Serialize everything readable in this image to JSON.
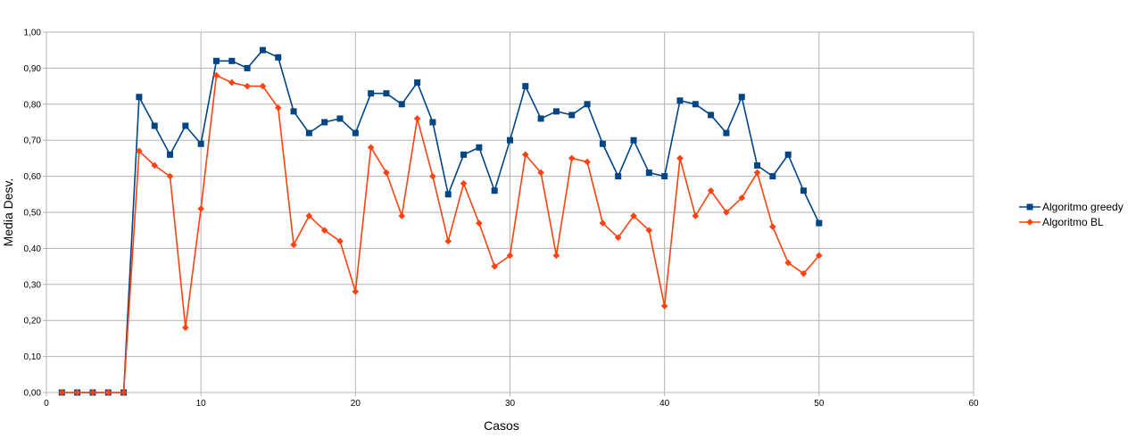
{
  "chart_data": {
    "type": "line",
    "title": "",
    "xlabel": "Casos",
    "ylabel": "Media Desv.",
    "xlim": [
      0,
      60
    ],
    "ylim": [
      0,
      1
    ],
    "x_ticks": [
      0,
      10,
      20,
      30,
      40,
      50,
      60
    ],
    "y_ticks": [
      "0,00",
      "0,10",
      "0,20",
      "0,30",
      "0,40",
      "0,50",
      "0,60",
      "0,70",
      "0,80",
      "0,90",
      "1,00"
    ],
    "grid": true,
    "legend_position": "right",
    "x": [
      1,
      2,
      3,
      4,
      5,
      6,
      7,
      8,
      9,
      10,
      11,
      12,
      13,
      14,
      15,
      16,
      17,
      18,
      19,
      20,
      21,
      22,
      23,
      24,
      25,
      26,
      27,
      28,
      29,
      30,
      31,
      32,
      33,
      34,
      35,
      36,
      37,
      38,
      39,
      40,
      41,
      42,
      43,
      44,
      45,
      46,
      47,
      48,
      49,
      50
    ],
    "series": [
      {
        "name": "Algoritmo greedy",
        "color": "#004586",
        "marker": "square",
        "values": [
          0.0,
          0.0,
          0.0,
          0.0,
          0.0,
          0.82,
          0.74,
          0.66,
          0.74,
          0.69,
          0.92,
          0.92,
          0.9,
          0.95,
          0.93,
          0.78,
          0.72,
          0.75,
          0.76,
          0.72,
          0.83,
          0.83,
          0.8,
          0.86,
          0.75,
          0.55,
          0.66,
          0.68,
          0.56,
          0.7,
          0.85,
          0.76,
          0.78,
          0.77,
          0.8,
          0.69,
          0.6,
          0.7,
          0.61,
          0.6,
          0.81,
          0.8,
          0.77,
          0.72,
          0.82,
          0.63,
          0.6,
          0.66,
          0.56,
          0.47
        ]
      },
      {
        "name": "Algoritmo BL",
        "color": "#ff420e",
        "marker": "diamond",
        "values": [
          0.0,
          0.0,
          0.0,
          0.0,
          0.0,
          0.67,
          0.63,
          0.6,
          0.18,
          0.51,
          0.88,
          0.86,
          0.85,
          0.85,
          0.79,
          0.41,
          0.49,
          0.45,
          0.42,
          0.28,
          0.68,
          0.61,
          0.49,
          0.76,
          0.6,
          0.42,
          0.58,
          0.47,
          0.35,
          0.38,
          0.66,
          0.61,
          0.38,
          0.65,
          0.64,
          0.47,
          0.43,
          0.49,
          0.45,
          0.24,
          0.65,
          0.49,
          0.56,
          0.5,
          0.54,
          0.61,
          0.46,
          0.36,
          0.33,
          0.38
        ]
      }
    ]
  }
}
